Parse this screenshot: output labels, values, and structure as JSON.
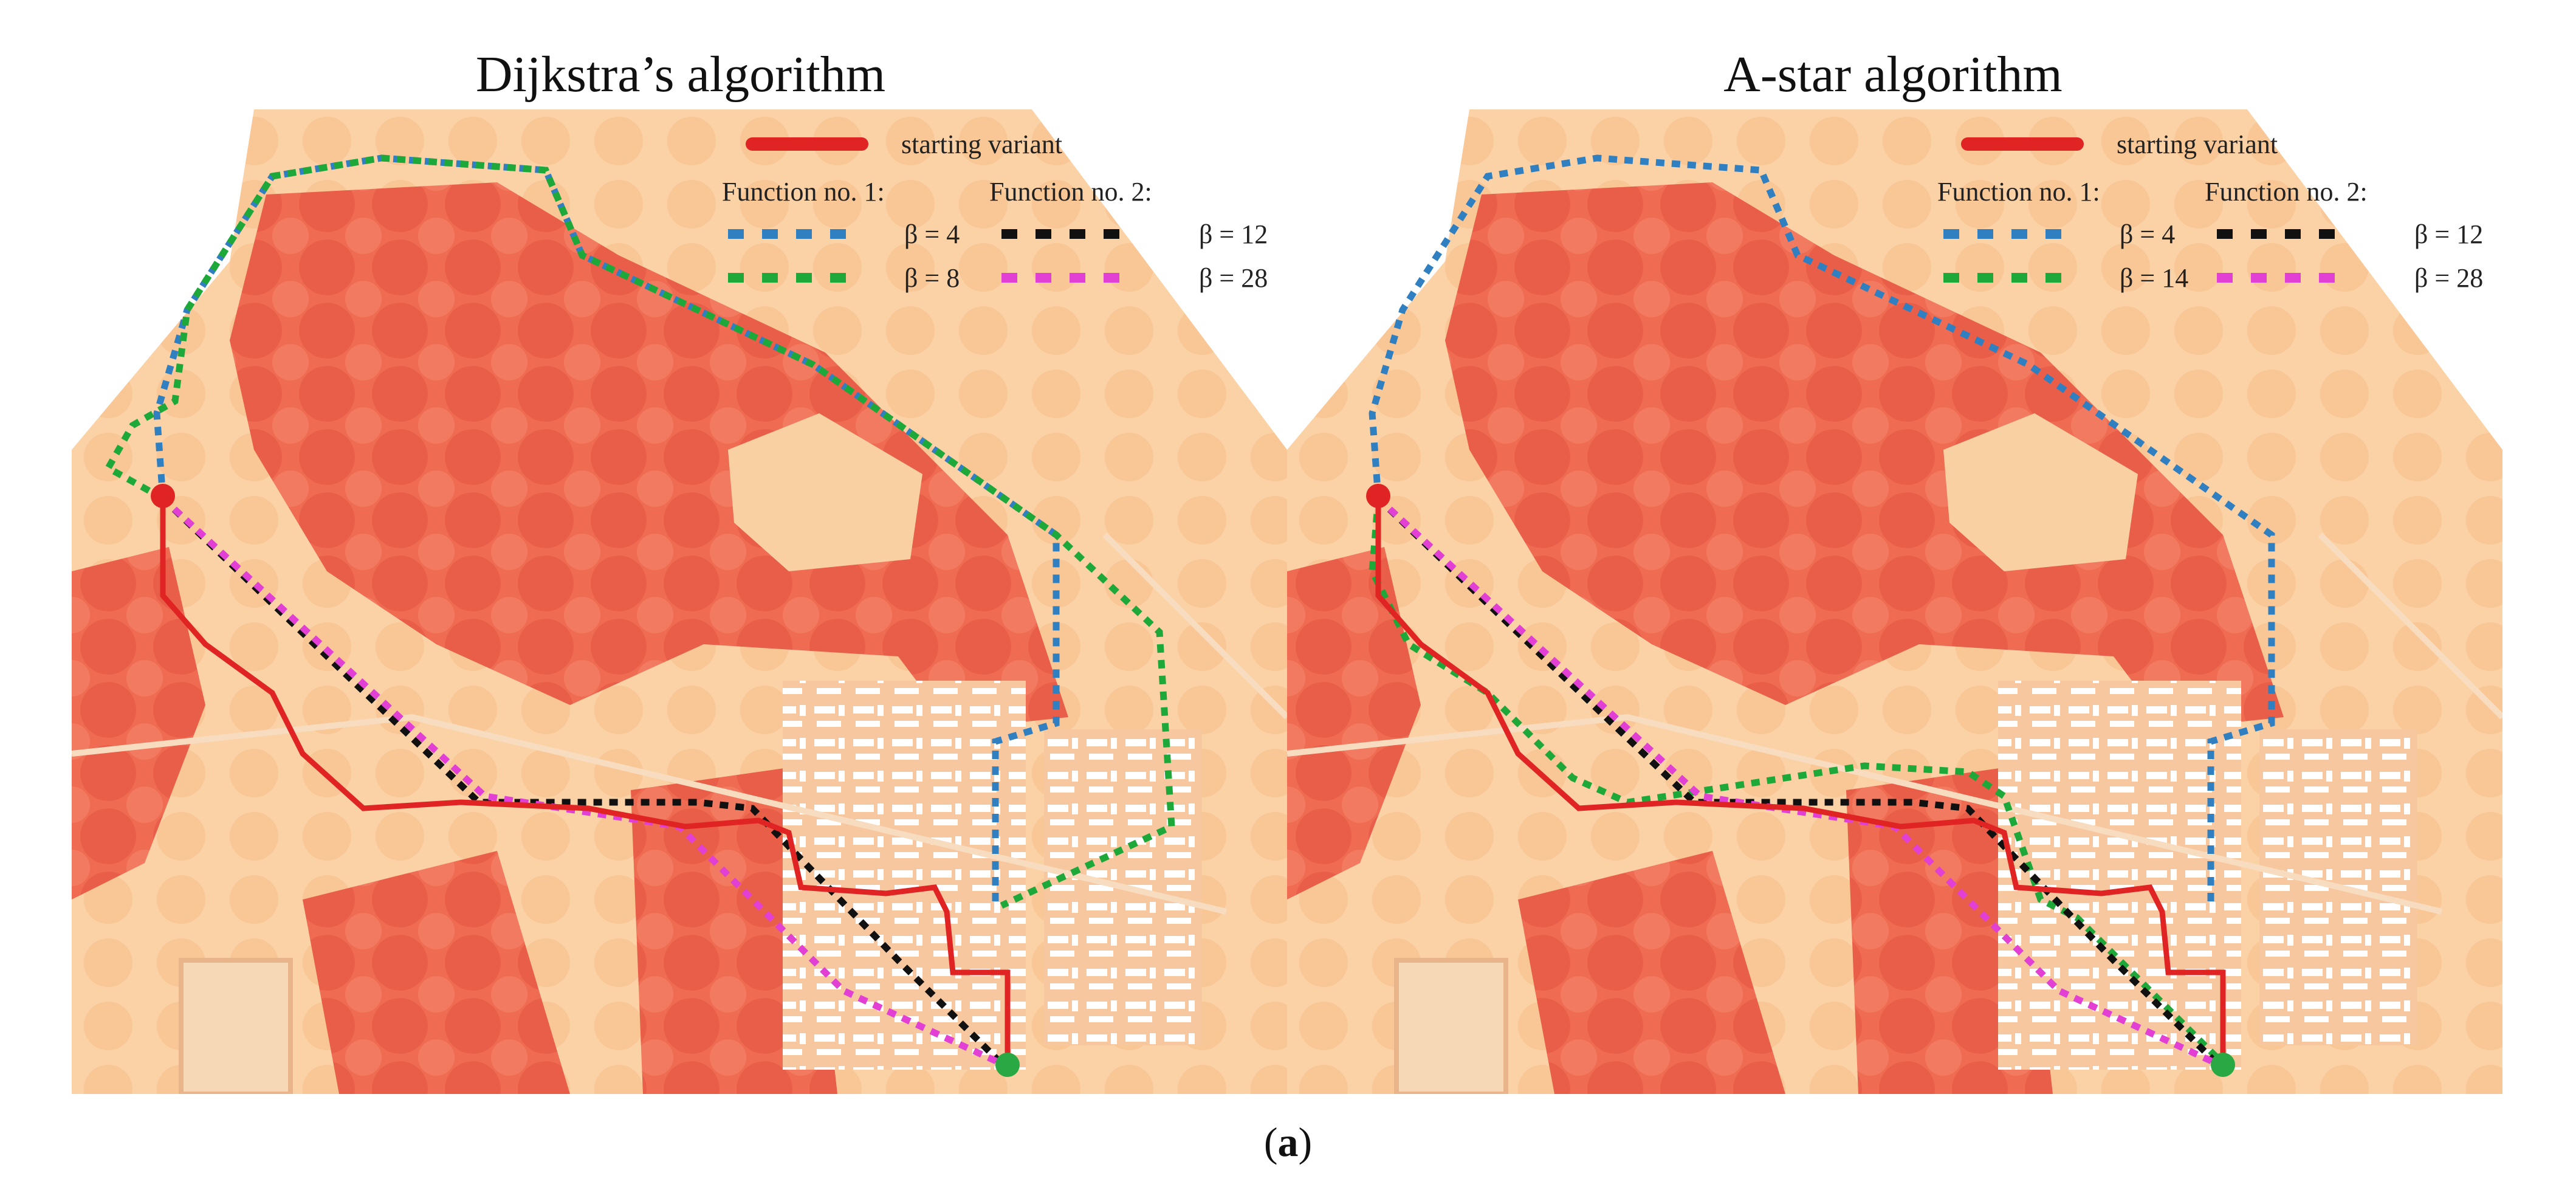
{
  "figure": {
    "caption_open": "(",
    "caption_label": "a",
    "caption_close": ")"
  },
  "panels": [
    {
      "title": "Dijkstra’s algorithm",
      "legend": {
        "starting": "starting variant",
        "function1": "Function no. 1:",
        "function2": "Function no. 2:",
        "beta_f1_a": "β = 4",
        "beta_f1_b": "β = 8",
        "beta_f2_a": "β = 12",
        "beta_f2_b": "β = 28"
      }
    },
    {
      "title": "A-star algorithm",
      "legend": {
        "starting": "starting variant",
        "function1": "Function no. 1:",
        "function2": "Function no. 2:",
        "beta_f1_a": "β = 4",
        "beta_f1_b": "β = 14",
        "beta_f2_a": "β = 12",
        "beta_f2_b": "β = 28"
      }
    }
  ],
  "colors": {
    "starting": "#e02424",
    "f1_a": "#2f7fc1",
    "f1_b": "#1fa83a",
    "f2_a": "#111111",
    "f2_b": "#e23fd4",
    "start_point": "#e02424",
    "end_point": "#2aa843"
  }
}
